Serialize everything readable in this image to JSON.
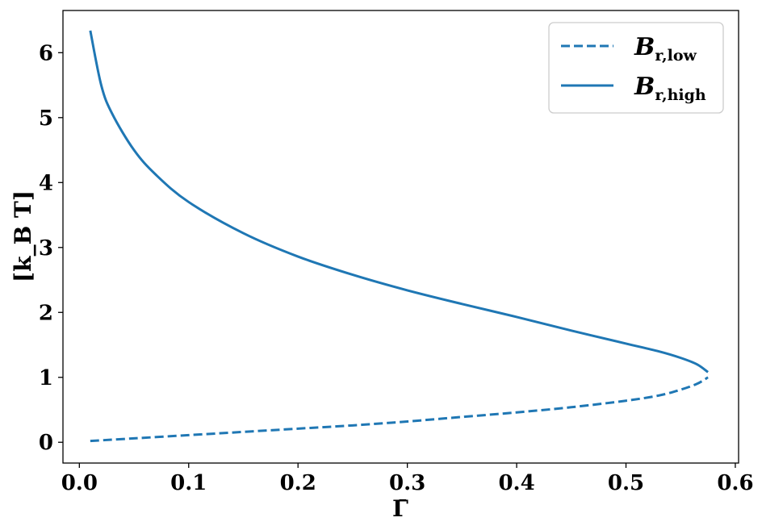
{
  "chart_data": {
    "type": "line",
    "xlabel": "Γ̄",
    "ylabel": "[k_B T]",
    "xlim": [
      -0.015,
      0.603
    ],
    "ylim": [
      -0.32,
      6.65
    ],
    "xticks": [
      0.0,
      0.1,
      0.2,
      0.3,
      0.4,
      0.5,
      0.6
    ],
    "xtick_labels": [
      "0.0",
      "0.1",
      "0.2",
      "0.3",
      "0.4",
      "0.5",
      "0.6"
    ],
    "yticks": [
      0,
      1,
      2,
      3,
      4,
      5,
      6
    ],
    "ytick_labels": [
      "0",
      "1",
      "2",
      "3",
      "4",
      "5",
      "6"
    ],
    "grid": false,
    "legend_position": "top-right",
    "series": [
      {
        "name": "B_{r,low}",
        "legend_main": "B",
        "legend_sub": "r,low",
        "style": "dashed",
        "color": "#1f77b4",
        "x": [
          0.01,
          0.05,
          0.1,
          0.15,
          0.2,
          0.25,
          0.3,
          0.35,
          0.4,
          0.45,
          0.5,
          0.53,
          0.55,
          0.565,
          0.575
        ],
        "y": [
          0.02,
          0.06,
          0.11,
          0.16,
          0.21,
          0.26,
          0.32,
          0.39,
          0.46,
          0.54,
          0.64,
          0.72,
          0.81,
          0.9,
          1.0
        ]
      },
      {
        "name": "B_{r,high}",
        "legend_main": "B",
        "legend_sub": "r,high",
        "style": "solid",
        "color": "#1f77b4",
        "x": [
          0.575,
          0.565,
          0.55,
          0.53,
          0.5,
          0.45,
          0.4,
          0.35,
          0.3,
          0.25,
          0.2,
          0.15,
          0.1,
          0.07,
          0.05,
          0.03,
          0.02,
          0.01
        ],
        "y": [
          1.08,
          1.2,
          1.3,
          1.4,
          1.52,
          1.72,
          1.93,
          2.13,
          2.34,
          2.58,
          2.86,
          3.22,
          3.7,
          4.12,
          4.5,
          5.06,
          5.5,
          6.34
        ]
      }
    ]
  }
}
